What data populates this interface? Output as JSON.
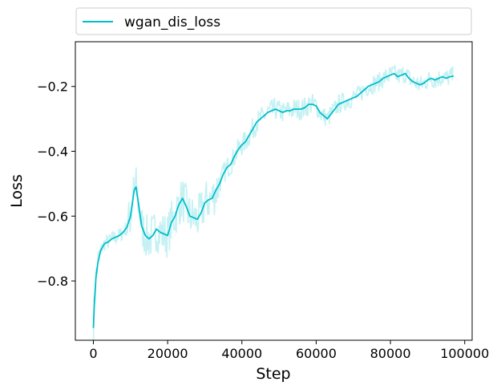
{
  "chart_data": {
    "type": "line",
    "title": "",
    "xlabel": "Step",
    "ylabel": "Loss",
    "xlim": [
      -4850,
      102000
    ],
    "ylim": [
      -0.983,
      -0.062
    ],
    "xticks": [
      0,
      20000,
      40000,
      60000,
      80000,
      100000
    ],
    "yticks": [
      -0.8,
      -0.6,
      -0.4,
      -0.2
    ],
    "xtick_labels": [
      "0",
      "20000",
      "40000",
      "60000",
      "80000",
      "100000"
    ],
    "ytick_labels": [
      "−0.8",
      "−0.6",
      "−0.4",
      "−0.2"
    ],
    "grid": false,
    "legend": {
      "position": "top",
      "entries": [
        "wgan_dis_loss"
      ]
    },
    "series": [
      {
        "name": "wgan_dis_loss",
        "color": "#00bec8",
        "raw_color": "#c6f1f3",
        "smoothed": [
          [
            0,
            -0.945
          ],
          [
            300,
            -0.86
          ],
          [
            700,
            -0.79
          ],
          [
            1200,
            -0.745
          ],
          [
            2000,
            -0.705
          ],
          [
            3000,
            -0.685
          ],
          [
            4000,
            -0.68
          ],
          [
            5000,
            -0.67
          ],
          [
            6000,
            -0.665
          ],
          [
            7000,
            -0.66
          ],
          [
            8000,
            -0.65
          ],
          [
            9000,
            -0.635
          ],
          [
            10000,
            -0.6
          ],
          [
            11000,
            -0.52
          ],
          [
            11500,
            -0.51
          ],
          [
            12000,
            -0.55
          ],
          [
            13000,
            -0.63
          ],
          [
            14000,
            -0.66
          ],
          [
            15000,
            -0.67
          ],
          [
            16000,
            -0.66
          ],
          [
            17000,
            -0.64
          ],
          [
            18000,
            -0.65
          ],
          [
            19000,
            -0.655
          ],
          [
            20000,
            -0.66
          ],
          [
            21000,
            -0.62
          ],
          [
            22000,
            -0.6
          ],
          [
            23000,
            -0.565
          ],
          [
            24000,
            -0.545
          ],
          [
            25000,
            -0.57
          ],
          [
            26000,
            -0.6
          ],
          [
            27000,
            -0.605
          ],
          [
            28000,
            -0.61
          ],
          [
            29000,
            -0.59
          ],
          [
            30000,
            -0.56
          ],
          [
            31000,
            -0.55
          ],
          [
            32000,
            -0.545
          ],
          [
            33000,
            -0.52
          ],
          [
            34000,
            -0.5
          ],
          [
            35000,
            -0.47
          ],
          [
            36000,
            -0.45
          ],
          [
            37000,
            -0.44
          ],
          [
            38000,
            -0.415
          ],
          [
            39000,
            -0.395
          ],
          [
            40000,
            -0.38
          ],
          [
            41000,
            -0.37
          ],
          [
            42000,
            -0.35
          ],
          [
            43000,
            -0.33
          ],
          [
            44000,
            -0.31
          ],
          [
            45000,
            -0.3
          ],
          [
            46000,
            -0.29
          ],
          [
            47000,
            -0.28
          ],
          [
            48000,
            -0.275
          ],
          [
            49000,
            -0.27
          ],
          [
            50000,
            -0.275
          ],
          [
            51000,
            -0.28
          ],
          [
            52000,
            -0.275
          ],
          [
            53000,
            -0.275
          ],
          [
            54000,
            -0.27
          ],
          [
            55000,
            -0.27
          ],
          [
            56000,
            -0.27
          ],
          [
            57000,
            -0.265
          ],
          [
            58000,
            -0.255
          ],
          [
            59000,
            -0.255
          ],
          [
            60000,
            -0.26
          ],
          [
            61000,
            -0.28
          ],
          [
            62000,
            -0.29
          ],
          [
            63000,
            -0.3
          ],
          [
            64000,
            -0.285
          ],
          [
            65000,
            -0.27
          ],
          [
            66000,
            -0.255
          ],
          [
            67000,
            -0.25
          ],
          [
            68000,
            -0.245
          ],
          [
            69000,
            -0.24
          ],
          [
            70000,
            -0.235
          ],
          [
            71000,
            -0.23
          ],
          [
            72000,
            -0.22
          ],
          [
            73000,
            -0.21
          ],
          [
            74000,
            -0.2
          ],
          [
            75000,
            -0.195
          ],
          [
            76000,
            -0.19
          ],
          [
            77000,
            -0.185
          ],
          [
            78000,
            -0.175
          ],
          [
            79000,
            -0.17
          ],
          [
            80000,
            -0.165
          ],
          [
            81000,
            -0.16
          ],
          [
            82000,
            -0.17
          ],
          [
            83000,
            -0.165
          ],
          [
            84000,
            -0.16
          ],
          [
            85000,
            -0.175
          ],
          [
            86000,
            -0.185
          ],
          [
            87000,
            -0.19
          ],
          [
            88000,
            -0.195
          ],
          [
            89000,
            -0.19
          ],
          [
            90000,
            -0.18
          ],
          [
            91000,
            -0.175
          ],
          [
            92000,
            -0.18
          ],
          [
            93000,
            -0.175
          ],
          [
            94000,
            -0.17
          ],
          [
            95000,
            -0.175
          ],
          [
            96000,
            -0.17
          ],
          [
            97000,
            -0.168
          ]
        ]
      }
    ]
  }
}
